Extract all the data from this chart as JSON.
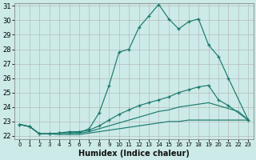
{
  "title": "",
  "xlabel": "Humidex (Indice chaleur)",
  "bg_color": "#cceae7",
  "grid_color": "#aaaaaa",
  "line_color": "#1a7a6e",
  "xlim": [
    -0.5,
    23.5
  ],
  "ylim": [
    21.8,
    31.2
  ],
  "yticks": [
    22,
    23,
    24,
    25,
    26,
    27,
    28,
    29,
    30,
    31
  ],
  "xticks": [
    0,
    1,
    2,
    3,
    4,
    5,
    6,
    7,
    8,
    9,
    10,
    11,
    12,
    13,
    14,
    15,
    16,
    17,
    18,
    19,
    20,
    21,
    22,
    23
  ],
  "lines": [
    {
      "x": [
        0,
        1,
        2,
        3,
        4,
        5,
        6,
        7,
        8,
        9,
        10,
        11,
        12,
        13,
        14,
        15,
        16,
        17,
        18,
        19,
        20,
        21,
        23
      ],
      "y": [
        22.8,
        22.65,
        22.15,
        22.15,
        22.2,
        22.2,
        22.25,
        22.5,
        23.6,
        25.5,
        27.8,
        28.0,
        29.5,
        30.3,
        31.1,
        30.1,
        29.4,
        29.9,
        30.1,
        28.3,
        27.5,
        26.0,
        23.1
      ],
      "marker": "+"
    },
    {
      "x": [
        0,
        1,
        2,
        3,
        4,
        5,
        6,
        7,
        8,
        9,
        10,
        11,
        12,
        13,
        14,
        15,
        16,
        17,
        18,
        19,
        20,
        21,
        23
      ],
      "y": [
        22.8,
        22.65,
        22.15,
        22.15,
        22.2,
        22.3,
        22.3,
        22.4,
        22.7,
        23.1,
        23.5,
        23.8,
        24.1,
        24.3,
        24.5,
        24.7,
        25.0,
        25.2,
        25.4,
        25.5,
        24.5,
        24.1,
        23.1
      ],
      "marker": "+"
    },
    {
      "x": [
        0,
        1,
        2,
        3,
        4,
        5,
        6,
        7,
        8,
        9,
        10,
        11,
        12,
        13,
        14,
        15,
        16,
        17,
        18,
        19,
        20,
        21,
        22,
        23
      ],
      "y": [
        22.8,
        22.65,
        22.15,
        22.15,
        22.2,
        22.2,
        22.2,
        22.3,
        22.5,
        22.7,
        22.9,
        23.1,
        23.3,
        23.5,
        23.7,
        23.8,
        24.0,
        24.1,
        24.2,
        24.3,
        24.1,
        23.9,
        23.7,
        23.1
      ],
      "marker": null
    },
    {
      "x": [
        0,
        1,
        2,
        3,
        4,
        5,
        6,
        7,
        8,
        9,
        10,
        11,
        12,
        13,
        14,
        15,
        16,
        17,
        18,
        19,
        20,
        21,
        22,
        23
      ],
      "y": [
        22.8,
        22.65,
        22.15,
        22.15,
        22.1,
        22.1,
        22.1,
        22.2,
        22.3,
        22.4,
        22.5,
        22.6,
        22.7,
        22.8,
        22.9,
        23.0,
        23.0,
        23.1,
        23.1,
        23.1,
        23.1,
        23.1,
        23.1,
        23.1
      ],
      "marker": null
    }
  ]
}
